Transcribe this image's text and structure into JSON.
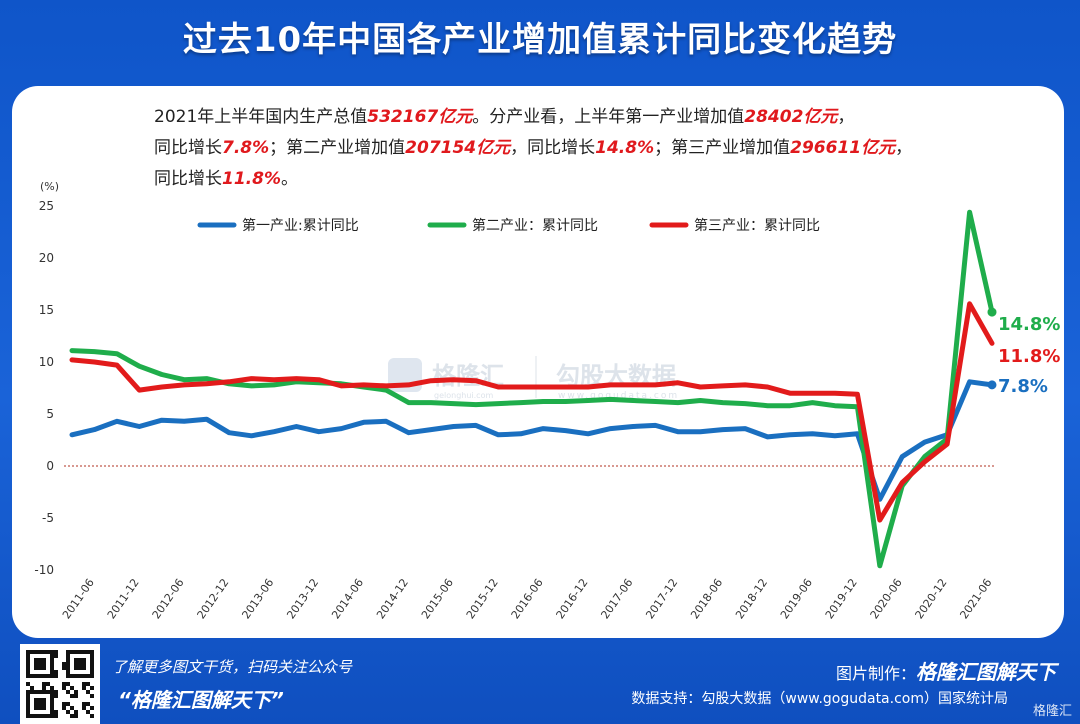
{
  "title": "过去10年中国各产业增加值累计同比变化趋势",
  "summary": {
    "l1_a": "2021年上半年国内生产总值",
    "l1_v1": "532167亿元",
    "l1_b": "。分产业看，上半年第一产业增加值",
    "l1_v2": "28402亿元",
    "l1_c": "，",
    "l2_a": "同比增长",
    "l2_v1": "7.8%",
    "l2_b": "；第二产业增加值",
    "l2_v2": "207154亿元",
    "l2_c": "，同比增长",
    "l2_v3": "14.8%",
    "l2_d": "；第三产业增加值",
    "l2_v4": "296611亿元",
    "l2_e": "，",
    "l3_a": "同比增长",
    "l3_v1": "11.8%",
    "l3_b": "。"
  },
  "watermark": {
    "brand": "格隆汇",
    "brand_sub": "gelonghui.com",
    "brand2": "勾股大数据",
    "brand2_sub": "www.gogudata.com"
  },
  "footer": {
    "left1": "了解更多图文干货，扫码关注公众号",
    "left2": "“格隆汇图解天下”",
    "right1_label": "图片制作：",
    "right1_brand": "格隆汇图解天下",
    "right2": "数据支持：勾股大数据（www.gogudata.com）国家统计局",
    "corner": "格隆汇"
  },
  "colors": {
    "primary": "#1a6fc0",
    "secondary": "#1fad4b",
    "tertiary": "#e21b1b",
    "highlight": "#e0191d",
    "background": "#1560d4",
    "zero_line": "#b03020"
  },
  "chart_data": {
    "type": "line",
    "ylabel": "(%)",
    "ylim": [
      -10,
      25
    ],
    "yticks": [
      25,
      20,
      15,
      10,
      5,
      0,
      -5,
      -10
    ],
    "xtick_labels": [
      "2011-06",
      "2011-12",
      "2012-06",
      "2012-12",
      "2013-06",
      "2013-12",
      "2014-06",
      "2014-12",
      "2015-06",
      "2015-12",
      "2016-06",
      "2016-12",
      "2017-06",
      "2017-12",
      "2018-06",
      "2018-12",
      "2019-06",
      "2019-12",
      "2020-06",
      "2020-12",
      "2021-06"
    ],
    "x": [
      "2011-03",
      "2011-06",
      "2011-09",
      "2011-12",
      "2012-03",
      "2012-06",
      "2012-09",
      "2012-12",
      "2013-03",
      "2013-06",
      "2013-09",
      "2013-12",
      "2014-03",
      "2014-06",
      "2014-09",
      "2014-12",
      "2015-03",
      "2015-06",
      "2015-09",
      "2015-12",
      "2016-03",
      "2016-06",
      "2016-09",
      "2016-12",
      "2017-03",
      "2017-06",
      "2017-09",
      "2017-12",
      "2018-03",
      "2018-06",
      "2018-09",
      "2018-12",
      "2019-03",
      "2019-06",
      "2019-09",
      "2019-12",
      "2020-03",
      "2020-06",
      "2020-09",
      "2020-12",
      "2021-03",
      "2021-06"
    ],
    "series": [
      {
        "name": "第一产业:累计同比",
        "color": "#1a6fc0",
        "end_label": "7.8%",
        "values": [
          3.0,
          3.5,
          4.3,
          3.8,
          4.4,
          4.3,
          4.5,
          3.2,
          2.9,
          3.3,
          3.8,
          3.3,
          3.6,
          4.2,
          4.3,
          3.2,
          3.5,
          3.8,
          3.9,
          3.0,
          3.1,
          3.6,
          3.4,
          3.1,
          3.6,
          3.8,
          3.9,
          3.3,
          3.3,
          3.5,
          3.6,
          2.8,
          3.0,
          3.1,
          2.9,
          3.1,
          -3.2,
          0.9,
          2.3,
          3.0,
          8.1,
          7.8
        ]
      },
      {
        "name": "第二产业：累计同比",
        "color": "#1fad4b",
        "end_label": "14.8%",
        "values": [
          11.1,
          11.0,
          10.8,
          9.6,
          8.8,
          8.3,
          8.4,
          7.9,
          7.7,
          7.8,
          8.1,
          8.0,
          7.9,
          7.6,
          7.3,
          6.1,
          6.1,
          6.0,
          5.9,
          6.0,
          6.1,
          6.2,
          6.2,
          6.3,
          6.4,
          6.3,
          6.2,
          6.1,
          6.3,
          6.1,
          6.0,
          5.8,
          5.8,
          6.1,
          5.8,
          5.7,
          -9.6,
          -1.9,
          0.9,
          2.6,
          24.4,
          14.8
        ]
      },
      {
        "name": "第三产业：累计同比",
        "color": "#e21b1b",
        "end_label": "11.8%",
        "values": [
          10.2,
          10.0,
          9.7,
          7.3,
          7.6,
          7.8,
          7.9,
          8.1,
          8.4,
          8.3,
          8.4,
          8.3,
          7.7,
          7.8,
          7.7,
          7.8,
          8.2,
          8.3,
          8.2,
          7.6,
          7.6,
          7.6,
          7.6,
          7.6,
          7.8,
          7.8,
          7.8,
          8.0,
          7.6,
          7.7,
          7.8,
          7.6,
          7.0,
          7.0,
          7.0,
          6.9,
          -5.2,
          -1.6,
          0.4,
          2.1,
          15.6,
          11.8
        ]
      }
    ],
    "legend_position": "top",
    "grid": false,
    "zero_line": "dotted"
  }
}
